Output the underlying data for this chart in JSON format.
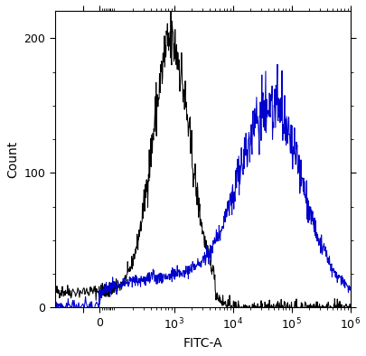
{
  "xlabel": "FITC-A",
  "ylabel": "Count",
  "ylim": [
    0,
    220
  ],
  "yticks": [
    0,
    100,
    200
  ],
  "background_color": "#ffffff",
  "black_peak_log": 2.95,
  "black_peak_height": 185,
  "black_sigma_log": 0.32,
  "black_baseline": 12,
  "blue_peak_log": 4.65,
  "blue_peak_height": 130,
  "blue_sigma_log": 0.52,
  "blue_baseline_slope": 35,
  "black_color": "#000000",
  "blue_color": "#0000cc",
  "line_width": 0.75,
  "linthresh": 100,
  "linscale": 0.25,
  "xlim_left": -300,
  "xlim_right": 1000000
}
